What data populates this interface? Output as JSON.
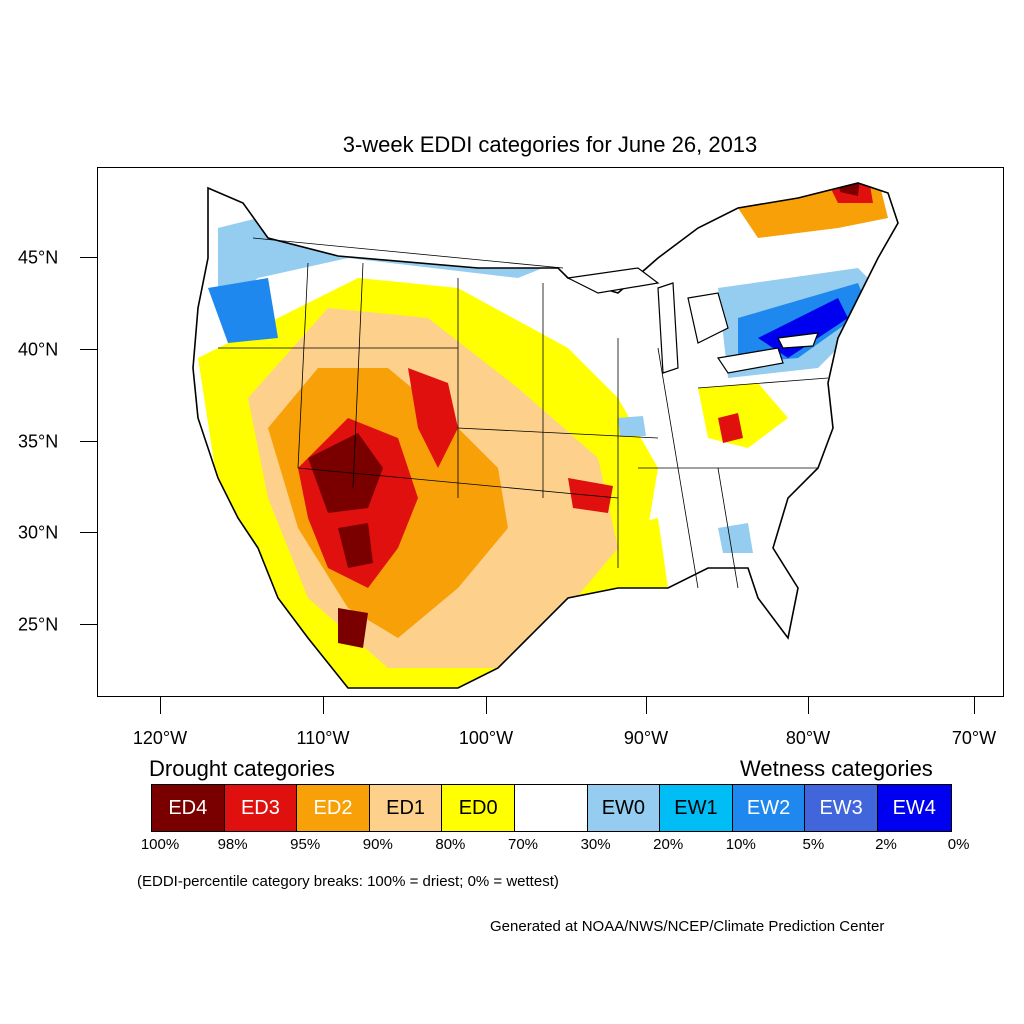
{
  "title": "3-week EDDI categories for June 26, 2013",
  "axes": {
    "lat_labels": [
      "45°N",
      "40°N",
      "35°N",
      "30°N",
      "25°N"
    ],
    "lon_labels": [
      "120°W",
      "110°W",
      "100°W",
      "90°W",
      "80°W",
      "70°W"
    ]
  },
  "legend": {
    "drought_title": "Drought categories",
    "wetness_title": "Wetness categories",
    "categories": [
      {
        "label": "ED4",
        "color": "#7a0000",
        "text_color": "#ffffff"
      },
      {
        "label": "ED3",
        "color": "#e0100f",
        "text_color": "#ffffff"
      },
      {
        "label": "ED2",
        "color": "#f8a008",
        "text_color": "#ffffff"
      },
      {
        "label": "ED1",
        "color": "#fdd18c",
        "text_color": "#000000"
      },
      {
        "label": "ED0",
        "color": "#ffff00",
        "text_color": "#000000"
      },
      {
        "label": "",
        "color": "#ffffff",
        "text_color": "#000000"
      },
      {
        "label": "EW0",
        "color": "#94cdf0",
        "text_color": "#000000"
      },
      {
        "label": "EW1",
        "color": "#00bdf5",
        "text_color": "#000000"
      },
      {
        "label": "EW2",
        "color": "#1e88ef",
        "text_color": "#ffffff"
      },
      {
        "label": "EW3",
        "color": "#4166dc",
        "text_color": "#ffffff"
      },
      {
        "label": "EW4",
        "color": "#0000f0",
        "text_color": "#ffffff"
      }
    ],
    "breaks": [
      "100%",
      "98%",
      "95%",
      "90%",
      "80%",
      "70%",
      "30%",
      "20%",
      "10%",
      "5%",
      "2%",
      "0%"
    ]
  },
  "note": "(EDDI-percentile category breaks: 100% = driest; 0% = wettest)",
  "credit": "Generated at NOAA/NWS/NCEP/Climate Prediction Center"
}
